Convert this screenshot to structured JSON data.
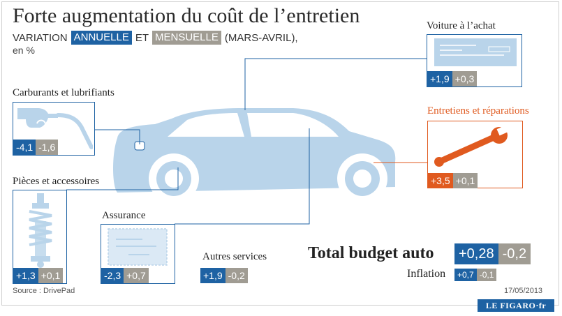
{
  "title": "Forte augmentation du coût de l’entretien",
  "subtitle": {
    "prefix": "VARIATION",
    "annual_tag": "ANNUELLE",
    "connector": "ET",
    "monthly_tag": "MENSUELLE",
    "period": "(MARS-AVRIL),",
    "unit": "en %"
  },
  "colors": {
    "annual": "#1e62a3",
    "monthly": "#a09c93",
    "highlight": "#e05a1f",
    "car": "#b9d4ea"
  },
  "categories": {
    "voiture": {
      "label": "Voiture à l’achat",
      "annual": "+1,9",
      "monthly": "+0,3",
      "icon": "cheque-icon"
    },
    "carburants": {
      "label": "Carburants et lubrifiants",
      "annual": "-4,1",
      "monthly": "-1,6",
      "icon": "fuel-nozzle-icon"
    },
    "entretiens": {
      "label": "Entretiens et réparations",
      "annual": "+3,5",
      "monthly": "+0,1",
      "icon": "wrench-icon"
    },
    "pieces": {
      "label": "Pièces et accessoires",
      "annual": "+1,3",
      "monthly": "+0,1",
      "icon": "shock-absorber-icon"
    },
    "assurance": {
      "label": "Assurance",
      "annual": "-2,3",
      "monthly": "+0,7",
      "icon": "insurance-card-icon"
    },
    "autres": {
      "label": "Autres services",
      "annual": "+1,9",
      "monthly": "-0,2"
    }
  },
  "total": {
    "label": "Total budget auto",
    "annual": "+0,28",
    "monthly": "-0,2"
  },
  "inflation": {
    "label": "Inflation",
    "annual": "+0,7",
    "monthly": "-0,1"
  },
  "source": "Source : DrivePad",
  "date": "17/05/2013",
  "logo": "LE FIGARO·fr",
  "chart_data": {
    "type": "bar",
    "title": "Forte augmentation du coût de l’entretien",
    "categories": [
      "Voiture à l’achat",
      "Carburants et lubrifiants",
      "Entretiens et réparations",
      "Pièces et accessoires",
      "Assurance",
      "Autres services",
      "Total budget auto",
      "Inflation"
    ],
    "series": [
      {
        "name": "ANNUELLE",
        "values": [
          1.9,
          -4.1,
          3.5,
          1.3,
          -2.3,
          1.9,
          0.28,
          0.7
        ]
      },
      {
        "name": "MENSUELLE",
        "values": [
          0.3,
          -1.6,
          0.1,
          0.1,
          0.7,
          -0.2,
          -0.2,
          -0.1
        ]
      }
    ]
  }
}
